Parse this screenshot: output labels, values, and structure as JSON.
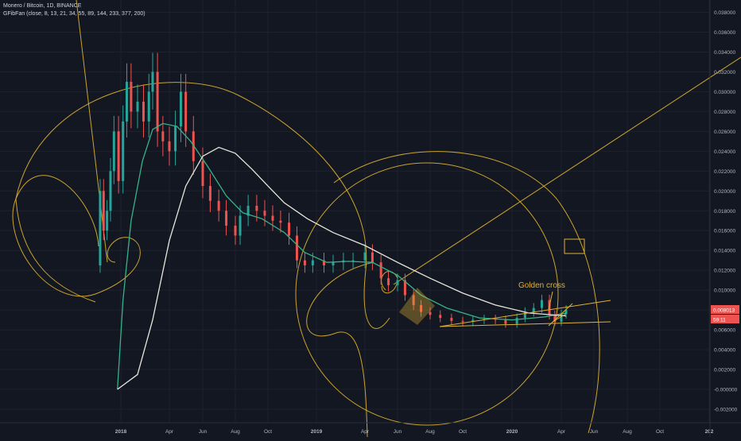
{
  "legend": {
    "symbol_line": "Monero / Bitcoin, 1D, BINANCE",
    "indicator_line": "GFibFan (close, 8, 13, 21, 34, 55, 89, 144, 233, 377, 200)"
  },
  "colors": {
    "background": "#131722",
    "grid": "#1e222d",
    "text": "#b2b5be",
    "up": "#26a69a",
    "down": "#ef5350",
    "fib": "#e0b230",
    "ma_fast": "#36b38a",
    "ma_slow": "#e8e6dc",
    "price_badge": "#ef5350"
  },
  "annotations": {
    "golden_cross": "Golden cross"
  },
  "chart_data": {
    "type": "candlestick",
    "title": "Monero / Bitcoin, 1D, BINANCE",
    "indicator": "GFibFan (close, 8, 13, 21, 34, 55, 89, 144, 233, 377, 200)",
    "x_ticks": [
      "2018",
      "Apr",
      "Jun",
      "Aug",
      "Oct",
      "2019",
      "Apr",
      "Jun",
      "Aug",
      "Oct",
      "2020",
      "Apr",
      "Jun",
      "Aug",
      "Oct",
      "202"
    ],
    "y_ticks": [
      "0.038000",
      "0.036000",
      "0.034000",
      "0.032000",
      "0.030000",
      "0.028000",
      "0.026000",
      "0.024000",
      "0.022000",
      "0.020000",
      "0.018000",
      "0.016000",
      "0.014000",
      "0.012000",
      "0.010000",
      "0.008000",
      "0.006000",
      "0.004000",
      "0.002000",
      "-0.000000",
      "-0.002000"
    ],
    "ylim": [
      -0.0025,
      0.0393
    ],
    "price_badges": [
      "0.008013",
      "59:11"
    ],
    "close_series": [
      {
        "x": "2017-11-20",
        "y": 0.0125
      },
      {
        "x": "2017-11-26",
        "y": 0.02
      },
      {
        "x": "2017-12-02",
        "y": 0.016
      },
      {
        "x": "2017-12-08",
        "y": 0.018
      },
      {
        "x": "2017-12-14",
        "y": 0.022
      },
      {
        "x": "2017-12-20",
        "y": 0.026
      },
      {
        "x": "2017-12-28",
        "y": 0.021
      },
      {
        "x": "2018-01-05",
        "y": 0.027
      },
      {
        "x": "2018-01-12",
        "y": 0.031
      },
      {
        "x": "2018-01-20",
        "y": 0.028
      },
      {
        "x": "2018-02-01",
        "y": 0.029
      },
      {
        "x": "2018-02-12",
        "y": 0.027
      },
      {
        "x": "2018-02-22",
        "y": 0.03
      },
      {
        "x": "2018-03-01",
        "y": 0.032
      },
      {
        "x": "2018-03-10",
        "y": 0.026
      },
      {
        "x": "2018-03-20",
        "y": 0.025
      },
      {
        "x": "2018-04-01",
        "y": 0.024
      },
      {
        "x": "2018-04-12",
        "y": 0.0265
      },
      {
        "x": "2018-04-22",
        "y": 0.03
      },
      {
        "x": "2018-05-01",
        "y": 0.026
      },
      {
        "x": "2018-05-15",
        "y": 0.023
      },
      {
        "x": "2018-06-01",
        "y": 0.0205
      },
      {
        "x": "2018-06-15",
        "y": 0.019
      },
      {
        "x": "2018-07-01",
        "y": 0.018
      },
      {
        "x": "2018-07-15",
        "y": 0.0165
      },
      {
        "x": "2018-08-01",
        "y": 0.0155
      },
      {
        "x": "2018-08-10",
        "y": 0.0175
      },
      {
        "x": "2018-08-25",
        "y": 0.0185
      },
      {
        "x": "2018-09-10",
        "y": 0.018
      },
      {
        "x": "2018-09-25",
        "y": 0.0175
      },
      {
        "x": "2018-10-10",
        "y": 0.017
      },
      {
        "x": "2018-10-25",
        "y": 0.0168
      },
      {
        "x": "2018-11-10",
        "y": 0.0155
      },
      {
        "x": "2018-11-25",
        "y": 0.013
      },
      {
        "x": "2018-12-10",
        "y": 0.0125
      },
      {
        "x": "2018-12-25",
        "y": 0.013
      },
      {
        "x": "2019-01-15",
        "y": 0.0125
      },
      {
        "x": "2019-02-01",
        "y": 0.0128
      },
      {
        "x": "2019-02-20",
        "y": 0.013
      },
      {
        "x": "2019-03-10",
        "y": 0.013
      },
      {
        "x": "2019-04-01",
        "y": 0.0138
      },
      {
        "x": "2019-04-15",
        "y": 0.0128
      },
      {
        "x": "2019-05-01",
        "y": 0.0112
      },
      {
        "x": "2019-05-15",
        "y": 0.0105
      },
      {
        "x": "2019-06-01",
        "y": 0.011
      },
      {
        "x": "2019-06-15",
        "y": 0.0095
      },
      {
        "x": "2019-07-01",
        "y": 0.0085
      },
      {
        "x": "2019-07-15",
        "y": 0.0078
      },
      {
        "x": "2019-08-01",
        "y": 0.0075
      },
      {
        "x": "2019-08-20",
        "y": 0.0072
      },
      {
        "x": "2019-09-10",
        "y": 0.0069
      },
      {
        "x": "2019-10-01",
        "y": 0.0068
      },
      {
        "x": "2019-10-20",
        "y": 0.007
      },
      {
        "x": "2019-11-10",
        "y": 0.0071
      },
      {
        "x": "2019-12-01",
        "y": 0.007
      },
      {
        "x": "2019-12-20",
        "y": 0.0066
      },
      {
        "x": "2020-01-10",
        "y": 0.0072
      },
      {
        "x": "2020-01-25",
        "y": 0.0078
      },
      {
        "x": "2020-02-10",
        "y": 0.0082
      },
      {
        "x": "2020-02-25",
        "y": 0.009
      },
      {
        "x": "2020-03-10",
        "y": 0.0075
      },
      {
        "x": "2020-03-20",
        "y": 0.0068
      },
      {
        "x": "2020-04-01",
        "y": 0.0076
      },
      {
        "x": "2020-04-10",
        "y": 0.008
      }
    ],
    "ma_fast": [
      {
        "x": "2017-12-26",
        "y": 0.0
      },
      {
        "x": "2018-01-05",
        "y": 0.009
      },
      {
        "x": "2018-01-20",
        "y": 0.017
      },
      {
        "x": "2018-02-10",
        "y": 0.023
      },
      {
        "x": "2018-03-01",
        "y": 0.0262
      },
      {
        "x": "2018-03-20",
        "y": 0.0268
      },
      {
        "x": "2018-04-15",
        "y": 0.0265
      },
      {
        "x": "2018-05-10",
        "y": 0.025
      },
      {
        "x": "2018-06-10",
        "y": 0.0225
      },
      {
        "x": "2018-07-15",
        "y": 0.0195
      },
      {
        "x": "2018-08-15",
        "y": 0.0178
      },
      {
        "x": "2018-09-20",
        "y": 0.0172
      },
      {
        "x": "2018-11-01",
        "y": 0.0158
      },
      {
        "x": "2018-12-10",
        "y": 0.0138
      },
      {
        "x": "2019-01-20",
        "y": 0.0128
      },
      {
        "x": "2019-03-01",
        "y": 0.0129
      },
      {
        "x": "2019-04-15",
        "y": 0.0128
      },
      {
        "x": "2019-06-01",
        "y": 0.0115
      },
      {
        "x": "2019-07-15",
        "y": 0.0095
      },
      {
        "x": "2019-09-01",
        "y": 0.0082
      },
      {
        "x": "2019-11-01",
        "y": 0.0072
      },
      {
        "x": "2020-01-01",
        "y": 0.007
      },
      {
        "x": "2020-03-01",
        "y": 0.0073
      },
      {
        "x": "2020-04-10",
        "y": 0.0077
      }
    ],
    "ma_slow": [
      {
        "x": "2017-12-26",
        "y": 0.0
      },
      {
        "x": "2018-02-01",
        "y": 0.0015
      },
      {
        "x": "2018-03-01",
        "y": 0.007
      },
      {
        "x": "2018-04-01",
        "y": 0.015
      },
      {
        "x": "2018-05-01",
        "y": 0.0205
      },
      {
        "x": "2018-06-01",
        "y": 0.0235
      },
      {
        "x": "2018-07-01",
        "y": 0.0244
      },
      {
        "x": "2018-08-01",
        "y": 0.0238
      },
      {
        "x": "2018-09-01",
        "y": 0.0222
      },
      {
        "x": "2018-10-01",
        "y": 0.0205
      },
      {
        "x": "2018-11-01",
        "y": 0.0188
      },
      {
        "x": "2018-12-15",
        "y": 0.0172
      },
      {
        "x": "2019-02-01",
        "y": 0.0158
      },
      {
        "x": "2019-04-01",
        "y": 0.0145
      },
      {
        "x": "2019-06-01",
        "y": 0.0128
      },
      {
        "x": "2019-08-01",
        "y": 0.0112
      },
      {
        "x": "2019-10-01",
        "y": 0.0097
      },
      {
        "x": "2019-12-01",
        "y": 0.0085
      },
      {
        "x": "2020-02-01",
        "y": 0.0077
      },
      {
        "x": "2020-04-10",
        "y": 0.0074
      }
    ]
  }
}
